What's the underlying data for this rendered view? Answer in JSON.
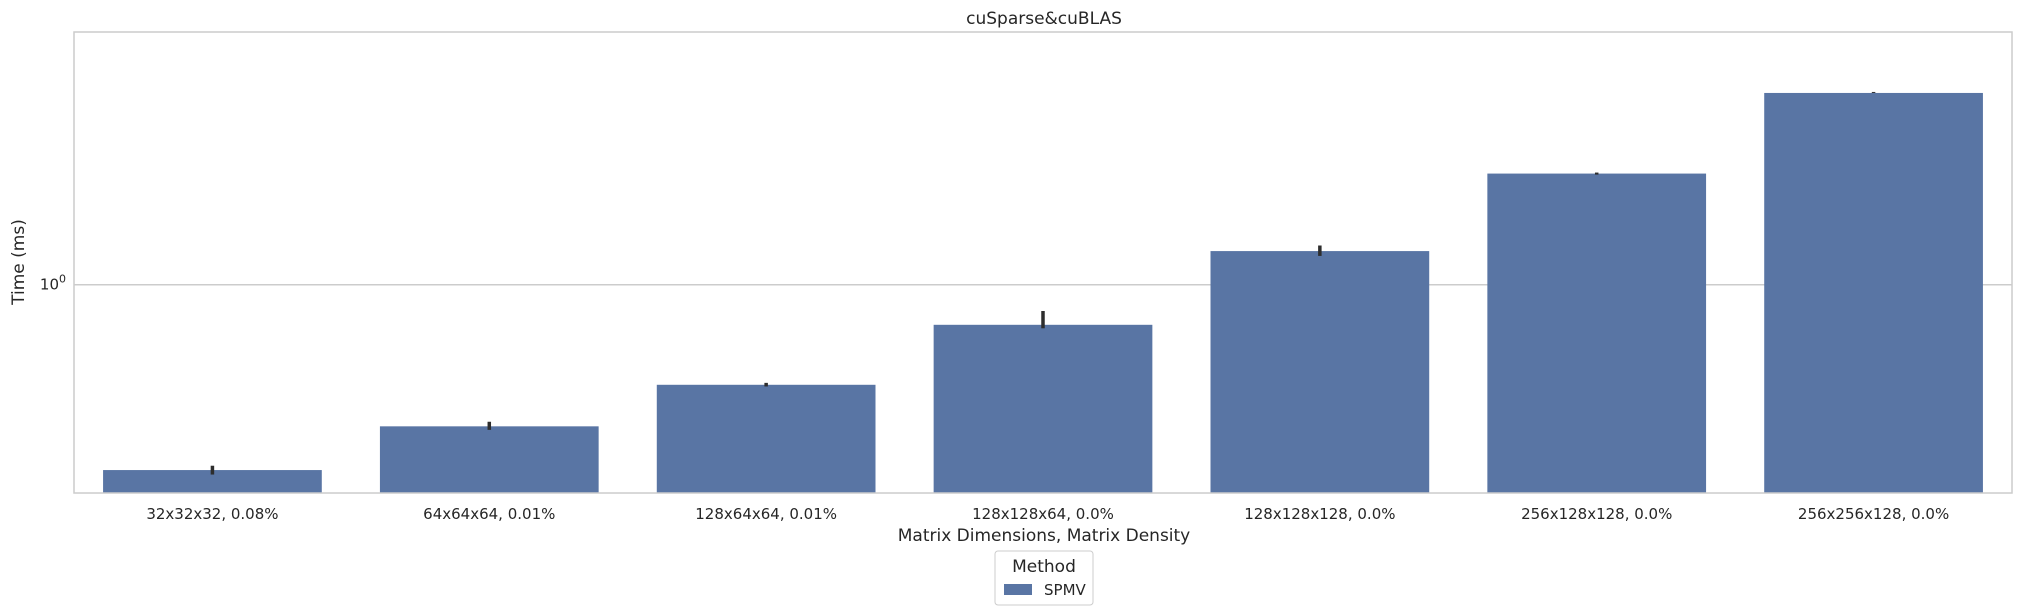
{
  "chart_data": {
    "type": "bar",
    "title": "cuSparse&cuBLAS",
    "xlabel": "Matrix Dimensions, Matrix Density",
    "ylabel": "Time (ms)",
    "yscale": "log",
    "ylim": [
      0.188,
      7.6
    ],
    "yticks": [
      {
        "value": 1,
        "base": "10",
        "exp": "0"
      }
    ],
    "grid": "horizontal",
    "categories": [
      "32x32x32, 0.08%",
      "64x64x64, 0.01%",
      "128x64x64, 0.01%",
      "128x128x64, 0.0%",
      "128x128x128, 0.0%",
      "256x128x128, 0.0%",
      "256x256x128, 0.0%"
    ],
    "series": [
      {
        "name": "SPMV",
        "color": "#5975a4",
        "values": [
          0.226,
          0.321,
          0.448,
          0.725,
          1.31,
          2.44,
          4.66
        ],
        "error_bars": [
          [
            0.218,
            0.234
          ],
          [
            0.312,
            0.333
          ],
          [
            0.442,
            0.455
          ],
          [
            0.705,
            0.81
          ],
          [
            1.26,
            1.37
          ],
          [
            2.42,
            2.46
          ],
          [
            4.66,
            4.66
          ]
        ]
      }
    ],
    "legend": {
      "title": "Method",
      "placement": "bottom-center",
      "entries": [
        {
          "label": "SPMV",
          "color": "#5975a4"
        }
      ]
    }
  }
}
